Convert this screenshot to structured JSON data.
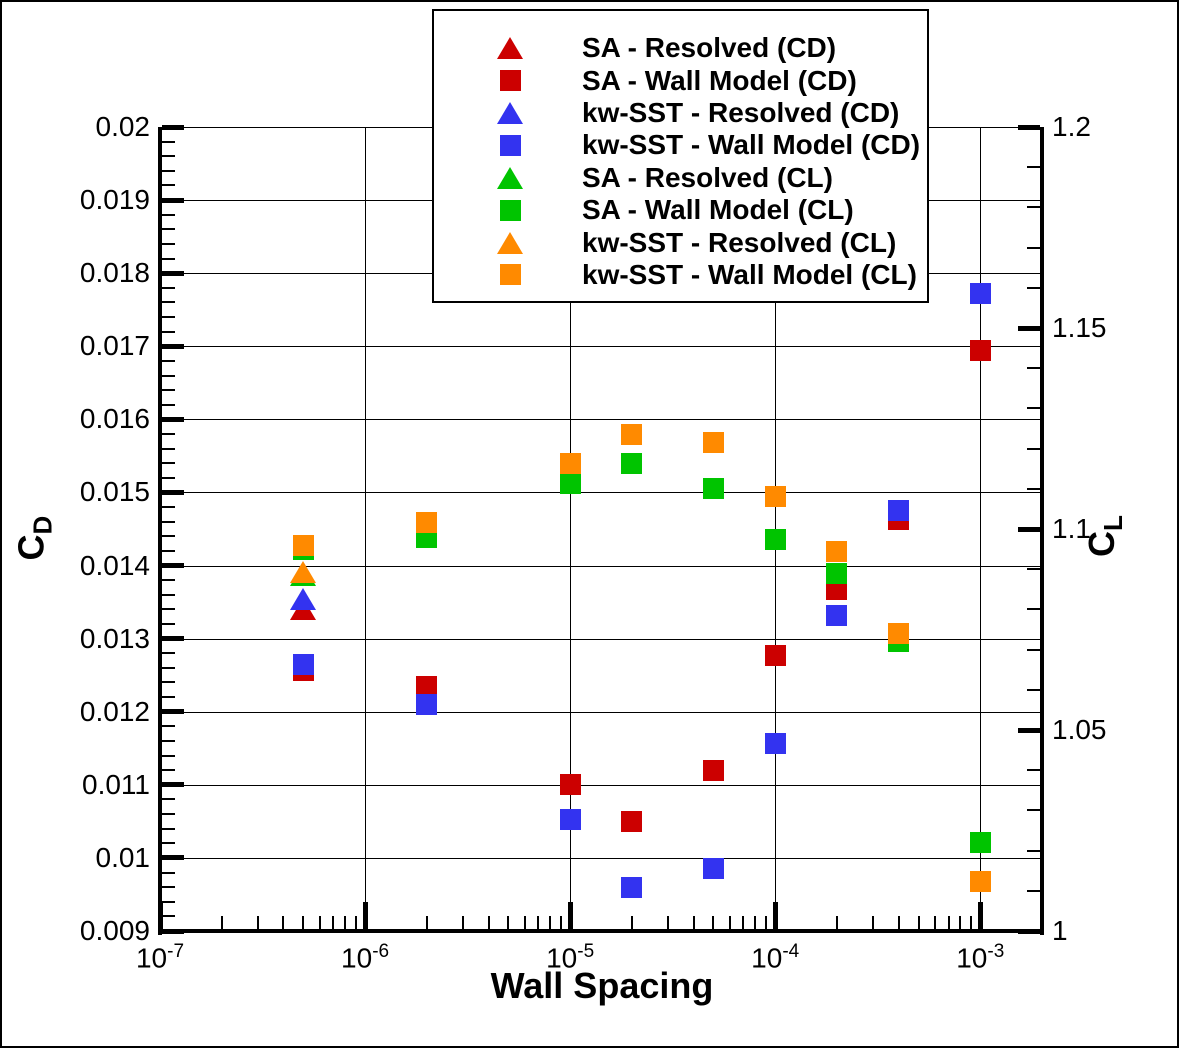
{
  "chart_data": {
    "type": "scatter",
    "title": "",
    "xlabel": "Wall Spacing",
    "x_scale": "log",
    "xlim": [
      1e-07,
      0.002
    ],
    "grid": true,
    "legend_position": "top-center",
    "left_axis": {
      "label_main": "C",
      "label_sub": "D",
      "lim": [
        0.009,
        0.02
      ],
      "tick_values": [
        0.009,
        0.01,
        0.011,
        0.012,
        0.013,
        0.014,
        0.015,
        0.016,
        0.017,
        0.018,
        0.019,
        0.02
      ],
      "tick_labels": [
        "0.009",
        "0.01",
        "0.011",
        "0.012",
        "0.013",
        "0.014",
        "0.015",
        "0.016",
        "0.017",
        "0.018",
        "0.019",
        "0.02"
      ],
      "minor_step": 0.0002
    },
    "right_axis": {
      "label_main": "C",
      "label_sub": "L",
      "lim": [
        1.0,
        1.2
      ],
      "tick_values": [
        1.0,
        1.05,
        1.1,
        1.15,
        1.2
      ],
      "tick_labels": [
        "1",
        "1.05",
        "1.1",
        "1.15",
        "1.2"
      ],
      "minor_step": 0.01
    },
    "x_ticks": [
      {
        "value": 1e-07,
        "exponent": "-7"
      },
      {
        "value": 1e-06,
        "exponent": "-6"
      },
      {
        "value": 1e-05,
        "exponent": "-5"
      },
      {
        "value": 0.0001,
        "exponent": "-4"
      },
      {
        "value": 0.001,
        "exponent": "-3"
      }
    ],
    "series": [
      {
        "name": "SA - Resolved (CD)",
        "axis": "left",
        "marker": "triangle",
        "color": "#CC0000",
        "x": [
          5e-07
        ],
        "y": [
          0.01341
        ]
      },
      {
        "name": "SA - Wall Model (CD)",
        "axis": "left",
        "marker": "square",
        "color": "#CC0000",
        "x": [
          5e-07,
          2e-06,
          1e-05,
          2e-05,
          5e-05,
          0.0001,
          0.0002,
          0.0004,
          0.001
        ],
        "y": [
          0.01257,
          0.01234,
          0.01101,
          0.0105,
          0.0112,
          0.01277,
          0.01367,
          0.01463,
          0.01694
        ]
      },
      {
        "name": "kw-SST - Resolved (CD)",
        "axis": "left",
        "marker": "triangle",
        "color": "#3333F0",
        "x": [
          5e-07
        ],
        "y": [
          0.01354
        ]
      },
      {
        "name": "kw-SST - Wall Model (CD)",
        "axis": "left",
        "marker": "square",
        "color": "#3333F0",
        "x": [
          5e-07,
          2e-06,
          1e-05,
          2e-05,
          5e-05,
          0.0001,
          0.0002,
          0.0004,
          0.001
        ],
        "y": [
          0.01264,
          0.0121,
          0.01053,
          0.00959,
          0.00985,
          0.01156,
          0.01332,
          0.01475,
          0.01772
        ]
      },
      {
        "name": "SA - Resolved (CL)",
        "axis": "right",
        "marker": "triangle",
        "color": "#00C400",
        "x": [
          5e-07
        ],
        "y": [
          1.0885
        ]
      },
      {
        "name": "SA - Wall Model (CL)",
        "axis": "right",
        "marker": "square",
        "color": "#00C400",
        "x": [
          5e-07,
          2e-06,
          1e-05,
          2e-05,
          5e-05,
          0.0001,
          0.0002,
          0.0004,
          0.001
        ],
        "y": [
          1.095,
          1.0978,
          1.1112,
          1.1162,
          1.11,
          1.0975,
          1.089,
          1.0719,
          1.0219
        ]
      },
      {
        "name": "kw-SST - Resolved (CL)",
        "axis": "right",
        "marker": "triangle",
        "color": "#FF8A00",
        "x": [
          5e-07
        ],
        "y": [
          1.0893
        ]
      },
      {
        "name": "kw-SST - Wall Model (CL)",
        "axis": "right",
        "marker": "square",
        "color": "#FF8A00",
        "x": [
          5e-07,
          2e-06,
          1e-05,
          2e-05,
          5e-05,
          0.0001,
          0.0002,
          0.0004,
          0.001
        ],
        "y": [
          1.0958,
          1.1015,
          1.1164,
          1.1236,
          1.1214,
          1.1082,
          1.0945,
          1.0739,
          1.0124
        ]
      }
    ]
  },
  "legend": {
    "entries": [
      {
        "label": "SA - Resolved (CD)",
        "marker": "triangle",
        "color": "#CC0000"
      },
      {
        "label": "SA - Wall Model (CD)",
        "marker": "square",
        "color": "#CC0000"
      },
      {
        "label": "kw-SST - Resolved (CD)",
        "marker": "triangle",
        "color": "#3333F0"
      },
      {
        "label": "kw-SST - Wall Model (CD)",
        "marker": "square",
        "color": "#3333F0"
      },
      {
        "label": "SA - Resolved (CL)",
        "marker": "triangle",
        "color": "#00C400"
      },
      {
        "label": "SA - Wall Model (CL)",
        "marker": "square",
        "color": "#00C400"
      },
      {
        "label": "kw-SST - Resolved (CL)",
        "marker": "triangle",
        "color": "#FF8A00"
      },
      {
        "label": "kw-SST - Wall Model (CL)",
        "marker": "square",
        "color": "#FF8A00"
      }
    ]
  }
}
